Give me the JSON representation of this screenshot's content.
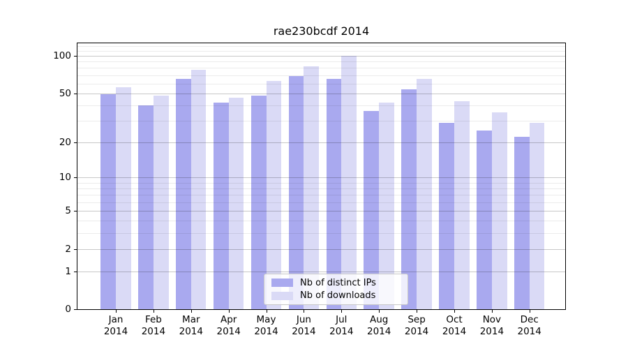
{
  "figure_title": "rae230bcdf 2014",
  "colors": {
    "distinct_ips": "#a9a9ef",
    "downloads": "#dadaf6",
    "grid_major": "#c8c8c8",
    "grid_minor": "#ebebeb",
    "axis_spine": "#000000",
    "legend_border": "#c7c7c7",
    "background": "#ffffff"
  },
  "legend": {
    "items": [
      {
        "label": "Nb of distinct IPs",
        "color": "#a9a9ef"
      },
      {
        "label": "Nb of downloads",
        "color": "#dadaf6"
      }
    ],
    "position": "lower center"
  },
  "chart_data": {
    "type": "bar",
    "title": "rae230bcdf 2014",
    "xlabel": "",
    "ylabel": "",
    "x_months": [
      "Jan",
      "Feb",
      "Mar",
      "Apr",
      "May",
      "Jun",
      "Jul",
      "Aug",
      "Sep",
      "Oct",
      "Nov",
      "Dec"
    ],
    "x_year": "2014",
    "categories": [
      "Jan 2014",
      "Feb 2014",
      "Mar 2014",
      "Apr 2014",
      "May 2014",
      "Jun 2014",
      "Jul 2014",
      "Aug 2014",
      "Sep 2014",
      "Oct 2014",
      "Nov 2014",
      "Dec 2014"
    ],
    "series": [
      {
        "name": "Nb of distinct IPs",
        "color": "#a9a9ef",
        "values": [
          49,
          40,
          65,
          42,
          48,
          69,
          65,
          36,
          54,
          29,
          25,
          22
        ]
      },
      {
        "name": "Nb of downloads",
        "color": "#dadaf6",
        "values": [
          56,
          48,
          77,
          46,
          63,
          83,
          100,
          42,
          65,
          43,
          35,
          29
        ]
      }
    ],
    "yscale": "log1p",
    "ylim": [
      0,
      126
    ],
    "y_ticks": [
      0,
      1,
      2,
      5,
      10,
      20,
      50,
      100
    ],
    "y_minor_ticks": [
      3,
      4,
      6,
      7,
      8,
      9,
      30,
      40,
      60,
      70,
      80,
      90,
      110,
      120
    ],
    "grid": true,
    "legend_position": "lower center"
  }
}
